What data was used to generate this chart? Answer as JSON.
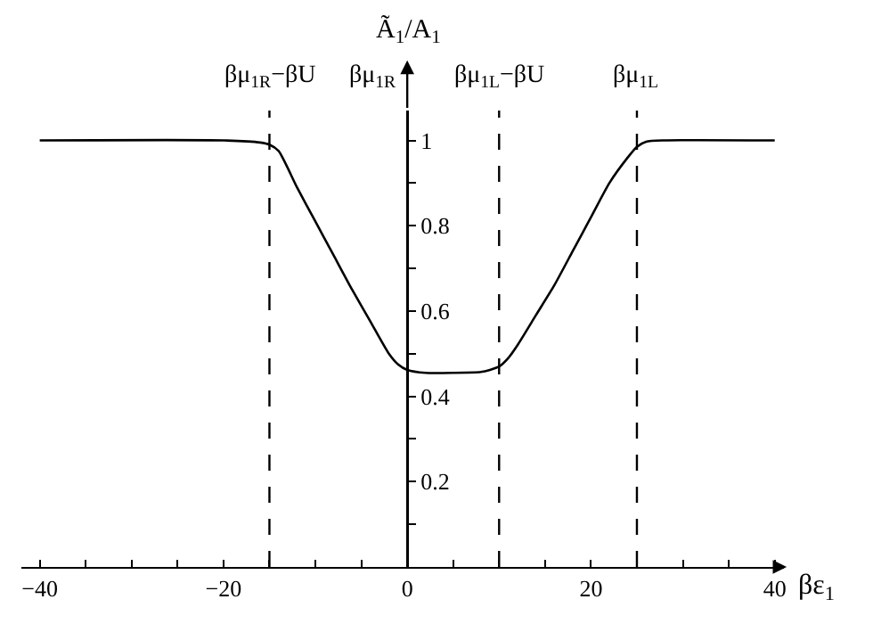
{
  "chart_data": {
    "type": "line",
    "xlabel": "βε$_{1}$",
    "ylabel": "Ã$_{1}$/A$_{1}$",
    "x": [
      -40,
      -20,
      -16,
      -15,
      -14,
      -12,
      -10,
      -8,
      -6,
      -4,
      -2,
      -1,
      0,
      2,
      5,
      8,
      9,
      10,
      11,
      12,
      14,
      16,
      18,
      20,
      22,
      24,
      25,
      26,
      28,
      40
    ],
    "series": [
      {
        "color": "#000000",
        "values": [
          1,
          1,
          0.995,
          0.99,
          0.975,
          0.89,
          0.81,
          0.73,
          0.65,
          0.575,
          0.5,
          0.475,
          0.462,
          0.455,
          0.455,
          0.457,
          0.462,
          0.47,
          0.49,
          0.52,
          0.59,
          0.66,
          0.74,
          0.82,
          0.9,
          0.96,
          0.985,
          0.997,
          1,
          1
        ]
      }
    ],
    "xlim": [
      -42,
      41
    ],
    "ylim": [
      0,
      1.07
    ],
    "xticks": [
      {
        "value": -40,
        "label": "−40"
      },
      {
        "value": -35,
        "label": null
      },
      {
        "value": -30,
        "label": null
      },
      {
        "value": -25,
        "label": null
      },
      {
        "value": -20,
        "label": "−20"
      },
      {
        "value": -15,
        "label": null
      },
      {
        "value": -10,
        "label": null
      },
      {
        "value": -5,
        "label": null
      },
      0,
      {
        "value": 5,
        "label": null
      },
      {
        "value": 10,
        "label": null
      },
      {
        "value": 15,
        "label": null
      },
      20,
      {
        "value": 25,
        "label": null
      },
      {
        "value": 30,
        "label": null
      },
      {
        "value": 35,
        "label": null
      },
      40
    ],
    "yticks": [
      {
        "value": 0.1,
        "label": null
      },
      0.2,
      {
        "value": 0.3,
        "label": null
      },
      0.4,
      {
        "value": 0.5,
        "label": null
      },
      0.6,
      {
        "value": 0.7,
        "label": null
      },
      0.8,
      {
        "value": 0.9,
        "label": null
      },
      1
    ],
    "ref_lines": [
      {
        "axis": "x",
        "value": -15,
        "label": "βμ$_{1R}$−βU",
        "color": "#000000",
        "line_style": "dashed"
      },
      {
        "axis": "x",
        "value": 0,
        "label": "βμ$_{1R}$",
        "color": "#000000",
        "line_style": "solid"
      },
      {
        "axis": "x",
        "value": 10,
        "label": "βμ$_{1L}$−βU",
        "color": "#000000",
        "line_style": "dashed"
      },
      {
        "axis": "x",
        "value": 25,
        "label": "βμ$_{1L}$",
        "color": "#000000",
        "line_style": "dashed"
      }
    ],
    "marker": "none",
    "line_style": "solid"
  }
}
